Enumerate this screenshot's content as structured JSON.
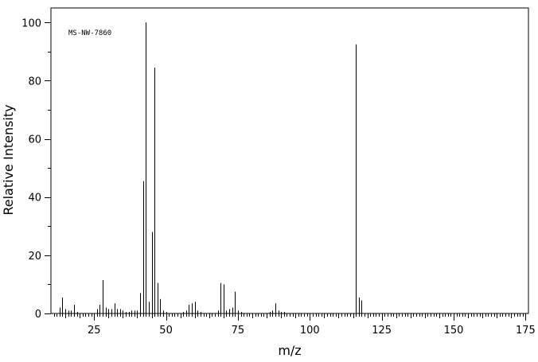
{
  "chart_data": {
    "type": "bar",
    "title": "",
    "annotation": "MS-NW-7860",
    "xlabel": "m/z",
    "ylabel": "Relative Intensity",
    "xlim": [
      10,
      176
    ],
    "ylim": [
      0,
      105
    ],
    "xticks": [
      25,
      50,
      75,
      100,
      125,
      150,
      175
    ],
    "yticks": [
      0,
      20,
      40,
      60,
      80,
      100
    ],
    "grid": false,
    "peaks": {
      "x": [
        13,
        14,
        15,
        16,
        17,
        18,
        19,
        26,
        27,
        28,
        29,
        30,
        31,
        32,
        33,
        34,
        35,
        36,
        37,
        38,
        39,
        40,
        41,
        42,
        43,
        44,
        45,
        46,
        47,
        48,
        49,
        50,
        56,
        57,
        58,
        59,
        60,
        61,
        62,
        68,
        69,
        70,
        71,
        72,
        73,
        74,
        75,
        76,
        86,
        87,
        88,
        89,
        90,
        91,
        116,
        117,
        118
      ],
      "y": [
        2,
        5.5,
        1.5,
        1,
        1,
        3,
        0.5,
        1.5,
        3,
        11.5,
        2,
        1.5,
        1.5,
        3.5,
        1.5,
        1.5,
        1,
        0.5,
        0.5,
        1,
        1,
        1,
        7,
        45.5,
        100,
        4,
        28,
        84.5,
        10.5,
        5,
        1,
        0.5,
        0.5,
        1,
        3,
        3.5,
        4,
        1,
        0.5,
        1,
        10.5,
        10,
        1,
        1.5,
        2,
        7.5,
        1,
        0.5,
        0.5,
        1,
        3.5,
        1,
        0.5,
        0.5,
        92.5,
        5.5,
        4.5
      ]
    }
  }
}
